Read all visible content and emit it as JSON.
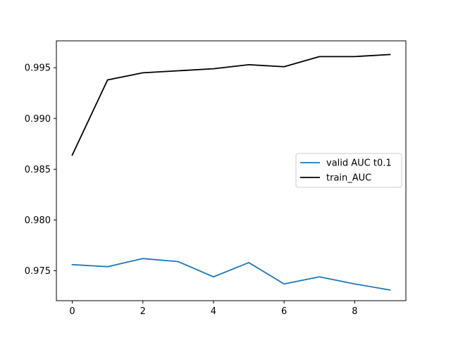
{
  "chart_data": {
    "type": "line",
    "title": "",
    "xlabel": "",
    "ylabel": "",
    "x": [
      0,
      1,
      2,
      3,
      4,
      5,
      6,
      7,
      8,
      9
    ],
    "xlim": [
      -0.45,
      9.45
    ],
    "ylim": [
      0.97205,
      0.99765
    ],
    "xticks": [
      0,
      2,
      4,
      6,
      8
    ],
    "yticks": [
      0.975,
      0.98,
      0.985,
      0.99,
      0.995
    ],
    "xtick_labels": [
      "0",
      "2",
      "4",
      "6",
      "8"
    ],
    "ytick_labels": [
      "0.975",
      "0.980",
      "0.985",
      "0.990",
      "0.995"
    ],
    "grid": false,
    "legend_position": "center-right",
    "series": [
      {
        "name": "valid AUC t0.1",
        "color": "#1f77b4",
        "values": [
          0.9756,
          0.9754,
          0.9762,
          0.9759,
          0.9744,
          0.9758,
          0.9737,
          0.9744,
          0.9737,
          0.9731
        ]
      },
      {
        "name": "train_AUC",
        "color": "#000000",
        "values": [
          0.9864,
          0.9938,
          0.9945,
          0.9947,
          0.9949,
          0.9953,
          0.9951,
          0.9961,
          0.9961,
          0.9963
        ]
      }
    ]
  }
}
